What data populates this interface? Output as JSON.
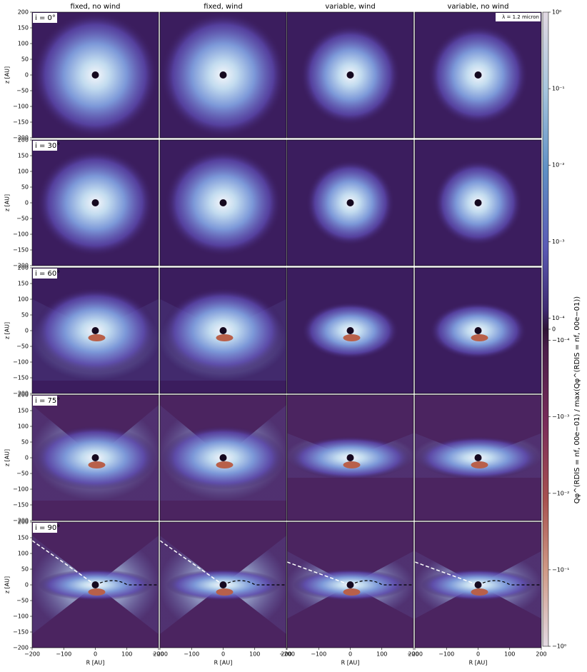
{
  "column_titles": [
    "fixed, no wind",
    "fixed, wind",
    "variable, wind",
    "variable, no wind"
  ],
  "row_labels": [
    "i = 0°",
    "i = 30°",
    "i = 60°",
    "i = 75°",
    "i = 90°"
  ],
  "annotation": "λ = 1.2 micron",
  "x_axis_label": "R [AU]",
  "y_axis_label": "z [AU]",
  "xlim": [
    -200,
    200
  ],
  "ylim": [
    -200,
    200
  ],
  "xticks": [
    {
      "value": -200,
      "label": "−200"
    },
    {
      "value": -100,
      "label": "−100"
    },
    0,
    100,
    200
  ],
  "yticks": [
    200,
    150,
    100,
    50,
    0,
    {
      "value": -50,
      "label": "−50"
    },
    {
      "value": -100,
      "label": "−100"
    },
    {
      "value": -150,
      "label": "−150"
    },
    {
      "value": -200,
      "label": "−200"
    }
  ],
  "colorbar": {
    "label": "Qφ^(RDIS = nf, 00e−01) / max(Qφ^(RDIS = nf, 00e−01))",
    "scale": "symlog",
    "clim": [
      -1,
      1
    ],
    "ticks": [
      {
        "value": 1,
        "label": "10⁰"
      },
      {
        "value": 0.1,
        "label": "10⁻¹"
      },
      {
        "value": 0.01,
        "label": "10⁻²"
      },
      {
        "value": 0.001,
        "label": "10⁻³"
      },
      {
        "value": 0.0001,
        "label": "10⁻⁴"
      },
      0,
      {
        "value": -0.0001,
        "label": "−10⁻⁴"
      },
      {
        "value": -0.001,
        "label": "−10⁻³"
      },
      {
        "value": -0.01,
        "label": "−10⁻²"
      },
      {
        "value": -0.1,
        "label": "−10⁻¹"
      },
      {
        "value": -1,
        "label": "−10⁰"
      }
    ]
  }
}
